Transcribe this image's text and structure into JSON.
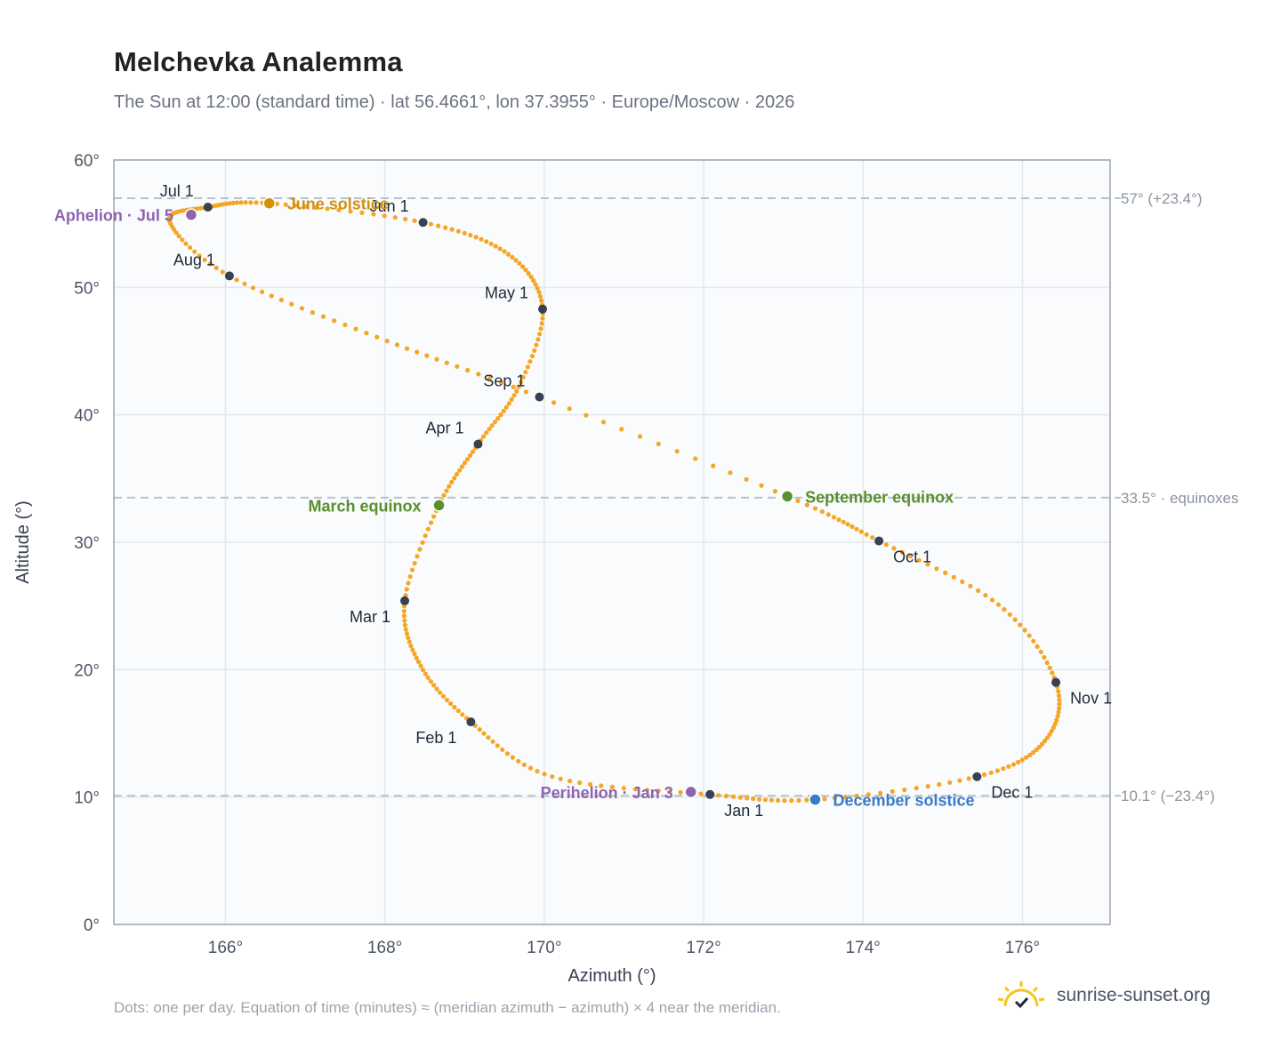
{
  "header": {
    "title": "Melchevka Analemma",
    "subtitle": "The Sun at 12:00 (standard time) · lat 56.4661°, lon 37.3955° · Europe/Moscow · 2026"
  },
  "footer": {
    "note": "Dots: one per day. Equation of time (minutes) ≈ (meridian azimuth − azimuth) × 4 near the meridian.",
    "brand": "sunrise-sunset.org"
  },
  "colors": {
    "path": "#f5a623",
    "month_marker": "#374151",
    "equinox": "#5a8f2e",
    "june_solstice": "#d4900a",
    "december_solstice": "#3a7bc8",
    "apsis": "#8e63b0",
    "reference_line": "#b8c2cc",
    "plot_bg": "#f9fbfd",
    "grid": "#e3e8ee",
    "frame": "#9aa5b1"
  },
  "chart_data": {
    "type": "scatter",
    "xlabel": "Azimuth (°)",
    "ylabel": "Altitude (°)",
    "xlim": [
      164.6,
      177.1
    ],
    "ylim": [
      0,
      60
    ],
    "x_ticks": [
      {
        "value": 166,
        "label": "166°"
      },
      {
        "value": 168,
        "label": "168°"
      },
      {
        "value": 170,
        "label": "170°"
      },
      {
        "value": 172,
        "label": "172°"
      },
      {
        "value": 174,
        "label": "174°"
      },
      {
        "value": 176,
        "label": "176°"
      }
    ],
    "y_ticks": [
      {
        "value": 0,
        "label": "0°"
      },
      {
        "value": 10,
        "label": "10°"
      },
      {
        "value": 20,
        "label": "20°"
      },
      {
        "value": 30,
        "label": "30°"
      },
      {
        "value": 40,
        "label": "40°"
      },
      {
        "value": 50,
        "label": "50°"
      },
      {
        "value": 60,
        "label": "60°"
      }
    ],
    "grid": true,
    "reference_lines": [
      {
        "y": 57.0,
        "label": "57° (+23.4°)"
      },
      {
        "y": 33.5,
        "label": "33.5° · equinoxes"
      },
      {
        "y": 10.1,
        "label": "10.1° (−23.4°)"
      }
    ],
    "daily_path_anchors": [
      {
        "x": 172.08,
        "y": 10.2
      },
      {
        "x": 170.1,
        "y": 11.6
      },
      {
        "x": 169.08,
        "y": 15.9
      },
      {
        "x": 168.45,
        "y": 20.3
      },
      {
        "x": 168.25,
        "y": 25.4
      },
      {
        "x": 168.68,
        "y": 32.9
      },
      {
        "x": 169.17,
        "y": 37.7
      },
      {
        "x": 169.68,
        "y": 42.2
      },
      {
        "x": 169.98,
        "y": 48.3
      },
      {
        "x": 169.55,
        "y": 52.6
      },
      {
        "x": 168.48,
        "y": 55.1
      },
      {
        "x": 166.55,
        "y": 56.6
      },
      {
        "x": 165.78,
        "y": 56.3
      },
      {
        "x": 165.3,
        "y": 55.2
      },
      {
        "x": 166.05,
        "y": 50.9
      },
      {
        "x": 167.9,
        "y": 46.1
      },
      {
        "x": 169.94,
        "y": 41.4
      },
      {
        "x": 173.05,
        "y": 33.6
      },
      {
        "x": 174.2,
        "y": 30.1
      },
      {
        "x": 175.7,
        "y": 25.1
      },
      {
        "x": 176.42,
        "y": 19.0
      },
      {
        "x": 176.28,
        "y": 14.4
      },
      {
        "x": 175.43,
        "y": 11.6
      },
      {
        "x": 173.4,
        "y": 9.8
      },
      {
        "x": 172.08,
        "y": 10.2
      }
    ],
    "month_markers": [
      {
        "label": "Jan 1",
        "x": 172.08,
        "y": 10.2,
        "anchor": "below-right"
      },
      {
        "label": "Feb 1",
        "x": 169.08,
        "y": 15.9,
        "anchor": "below-left"
      },
      {
        "label": "Mar 1",
        "x": 168.25,
        "y": 25.4,
        "anchor": "below-left"
      },
      {
        "label": "Apr 1",
        "x": 169.17,
        "y": 37.7,
        "anchor": "above-left"
      },
      {
        "label": "May 1",
        "x": 169.98,
        "y": 48.3,
        "anchor": "above-left"
      },
      {
        "label": "Jun 1",
        "x": 168.48,
        "y": 55.1,
        "anchor": "above-left"
      },
      {
        "label": "Jul 1",
        "x": 165.78,
        "y": 56.3,
        "anchor": "above-left"
      },
      {
        "label": "Aug 1",
        "x": 166.05,
        "y": 50.9,
        "anchor": "above-left"
      },
      {
        "label": "Sep 1",
        "x": 169.94,
        "y": 41.4,
        "anchor": "above-left"
      },
      {
        "label": "Oct 1",
        "x": 174.2,
        "y": 30.1,
        "anchor": "below-right"
      },
      {
        "label": "Nov 1",
        "x": 176.42,
        "y": 19.0,
        "anchor": "below-right"
      },
      {
        "label": "Dec 1",
        "x": 175.43,
        "y": 11.6,
        "anchor": "below-right"
      }
    ],
    "events": [
      {
        "label": "June solstice",
        "x": 166.55,
        "y": 56.6,
        "color": "#d4900a",
        "side": "right"
      },
      {
        "label": "Aphelion · Jul 5",
        "x": 165.57,
        "y": 55.7,
        "color": "#8e63b0",
        "side": "left"
      },
      {
        "label": "March equinox",
        "x": 168.68,
        "y": 32.9,
        "color": "#5a8f2e",
        "side": "left"
      },
      {
        "label": "September equinox",
        "x": 173.05,
        "y": 33.6,
        "color": "#5a8f2e",
        "side": "right"
      },
      {
        "label": "Perihelion · Jan 3",
        "x": 171.84,
        "y": 10.4,
        "color": "#8e63b0",
        "side": "left"
      },
      {
        "label": "December solstice",
        "x": 173.4,
        "y": 9.8,
        "color": "#3a7bc8",
        "side": "right"
      }
    ]
  }
}
